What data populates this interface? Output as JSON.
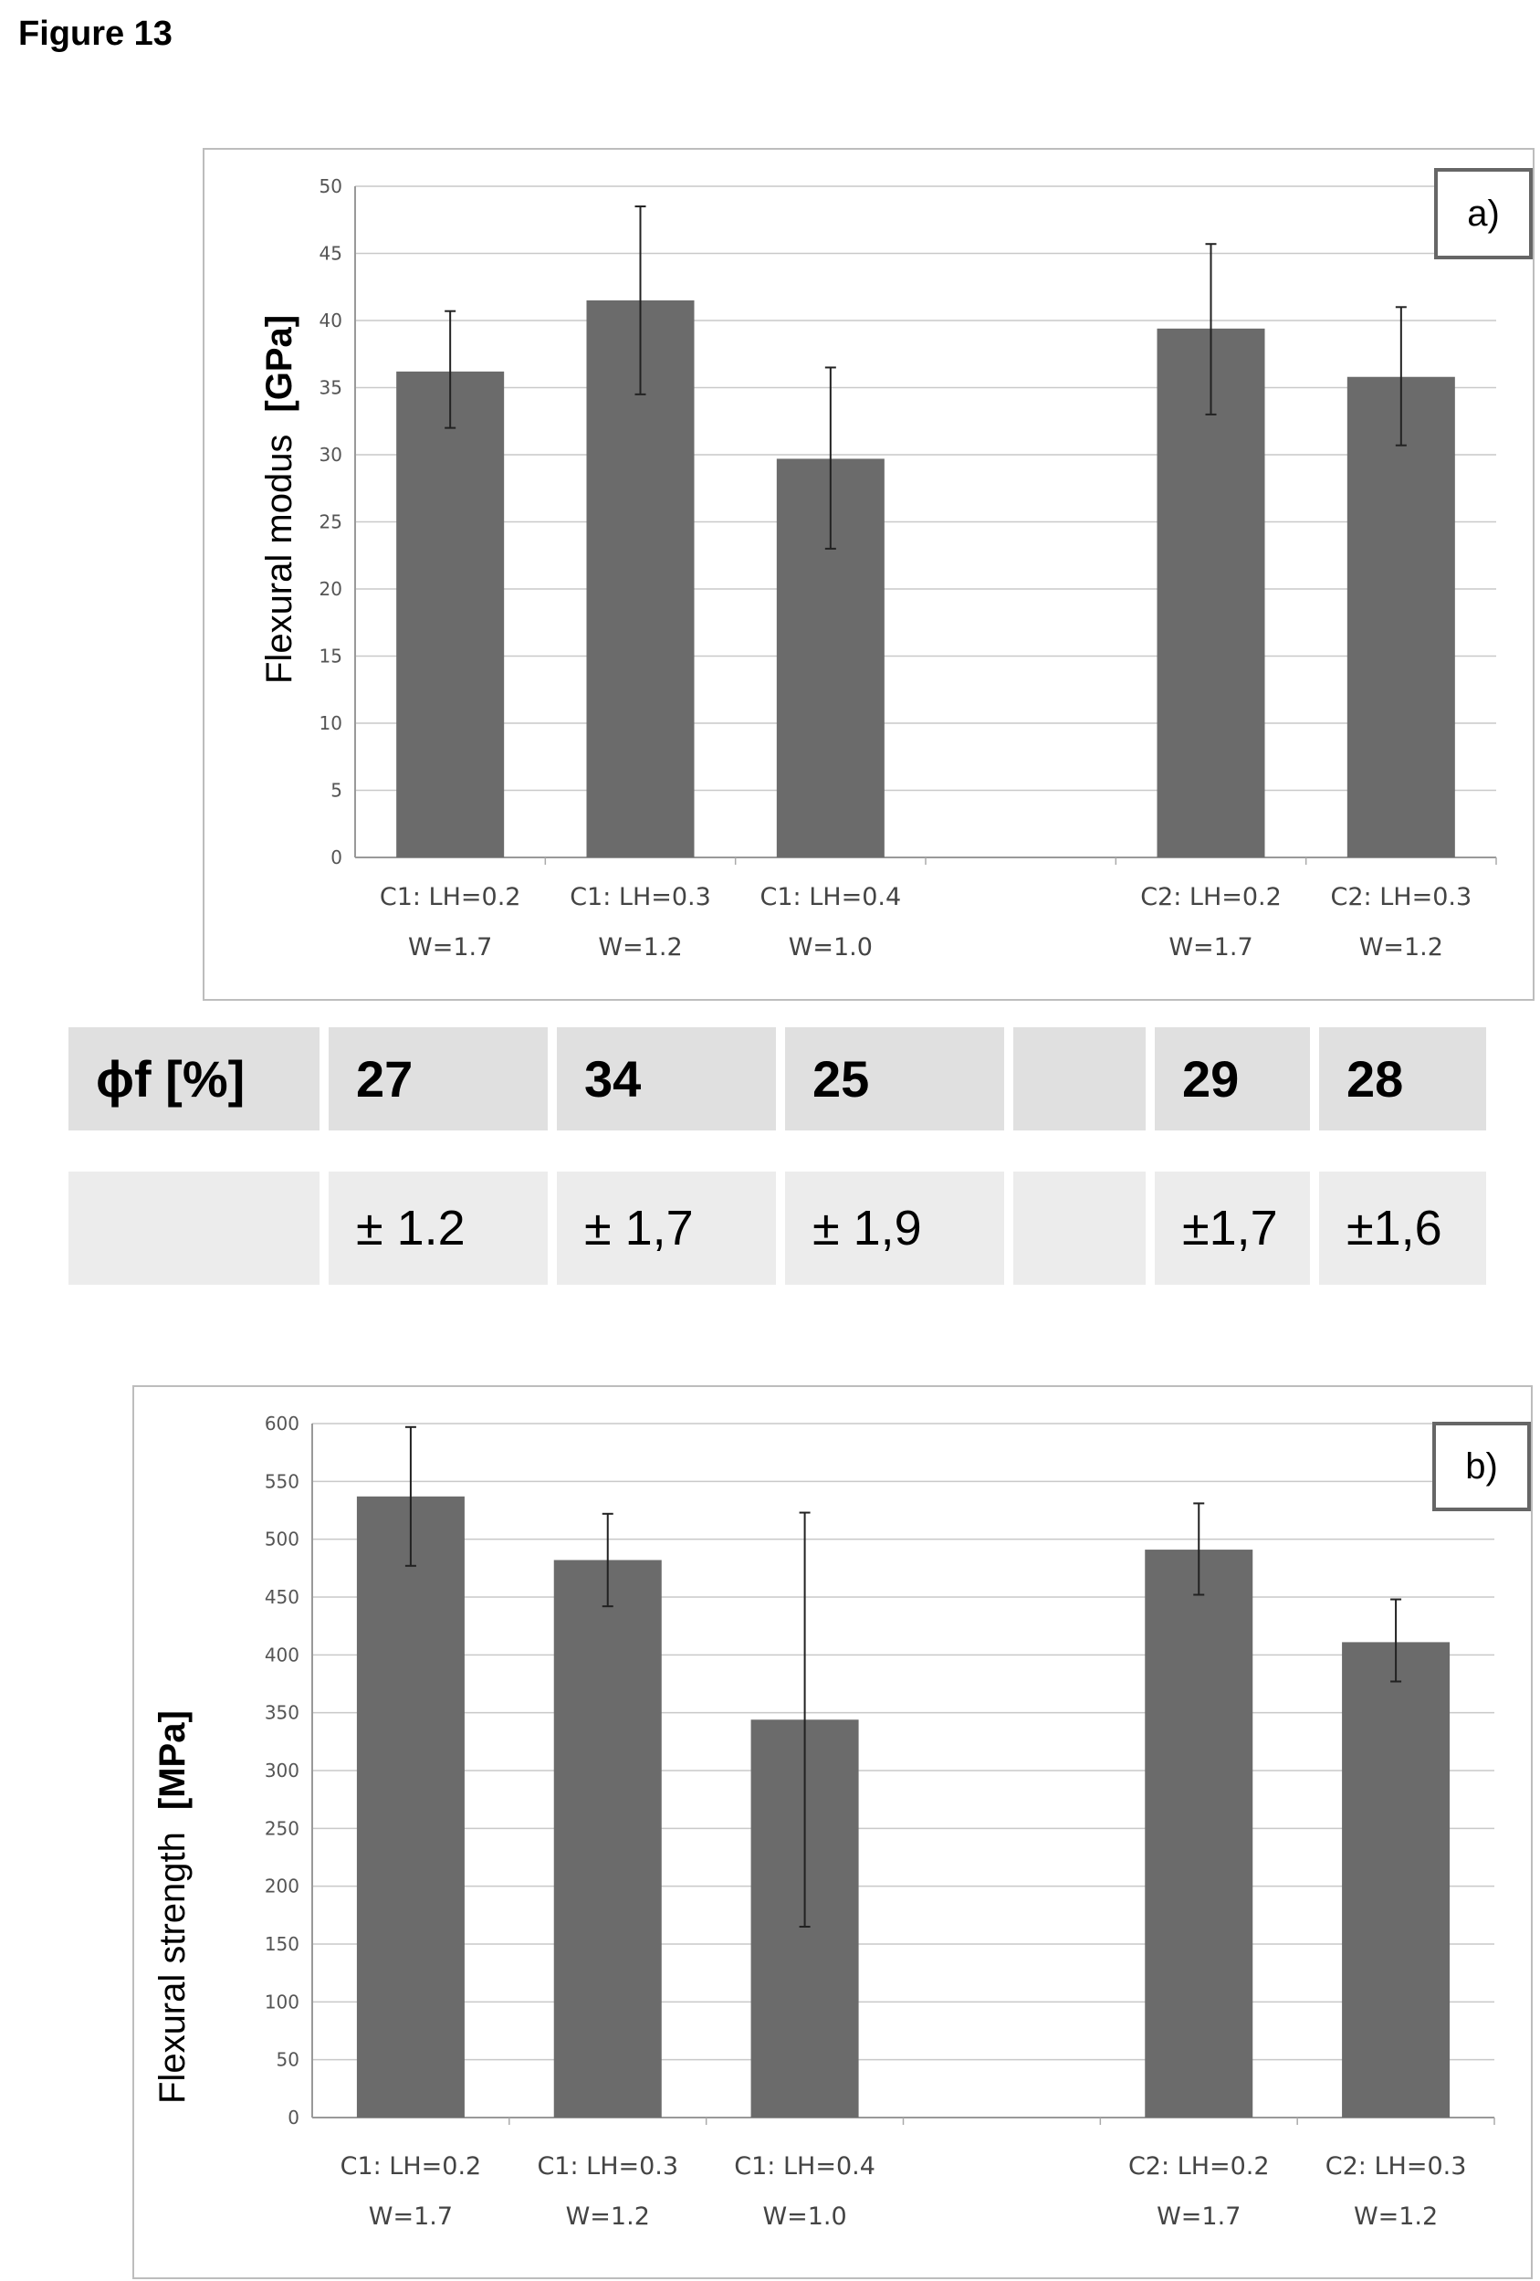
{
  "figure_title": "Figure 13",
  "table": {
    "header": "ϕf [%]",
    "values": [
      "27",
      "34",
      "25",
      "",
      "29",
      "28"
    ],
    "errors": [
      "± 1.2",
      "± 1,7",
      "± 1,9",
      "",
      "±1,7",
      "±1,6"
    ]
  },
  "chart_data": [
    {
      "type": "bar",
      "panel_label": "a)",
      "ylabel": "Flexural modus",
      "yunit": "[GPa]",
      "ylim": [
        0,
        50
      ],
      "yticks": [
        0,
        5,
        10,
        15,
        20,
        25,
        30,
        35,
        40,
        45,
        50
      ],
      "grid": true,
      "categories": [
        [
          "C1: LH=0.2",
          "W=1.7"
        ],
        [
          "C1: LH=0.3",
          "W=1.2"
        ],
        [
          "C1: LH=0.4",
          "W=1.0"
        ],
        null,
        [
          "C2: LH=0.2",
          "W=1.7"
        ],
        [
          "C2: LH=0.3",
          "W=1.2"
        ]
      ],
      "values": [
        36.2,
        41.5,
        29.7,
        null,
        39.4,
        35.8
      ],
      "error_low": [
        32.0,
        34.5,
        23.0,
        null,
        33.0,
        30.7
      ],
      "error_high": [
        40.7,
        48.5,
        36.5,
        null,
        45.7,
        41.0
      ],
      "bar_color": "#6b6b6b"
    },
    {
      "type": "bar",
      "panel_label": "b)",
      "ylabel": "Flexural strength",
      "yunit": "[MPa]",
      "ylim": [
        0,
        600
      ],
      "yticks": [
        0,
        50,
        100,
        150,
        200,
        250,
        300,
        350,
        400,
        450,
        500,
        550,
        600
      ],
      "grid": true,
      "categories": [
        [
          "C1: LH=0.2",
          "W=1.7"
        ],
        [
          "C1: LH=0.3",
          "W=1.2"
        ],
        [
          "C1: LH=0.4",
          "W=1.0"
        ],
        null,
        [
          "C2: LH=0.2",
          "W=1.7"
        ],
        [
          "C2: LH=0.3",
          "W=1.2"
        ]
      ],
      "values": [
        537,
        482,
        344,
        null,
        491,
        411
      ],
      "error_low": [
        477,
        442,
        165,
        null,
        452,
        377
      ],
      "error_high": [
        597,
        522,
        523,
        null,
        531,
        448
      ],
      "bar_color": "#6b6b6b"
    }
  ]
}
